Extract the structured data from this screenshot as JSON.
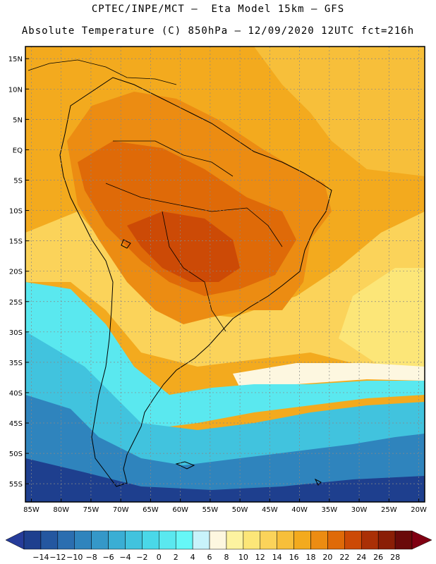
{
  "header": {
    "line1": "CPTEC/INPE/MCT —  Eta Model 15km — GFS",
    "line2": "Absolute Temperature (C) 850hPa — 12/09/2020 12UTC fct=216h"
  },
  "axes": {
    "lat_labels": [
      "15N",
      "10N",
      "5N",
      "EQ",
      "5S",
      "10S",
      "15S",
      "20S",
      "25S",
      "30S",
      "35S",
      "40S",
      "45S",
      "50S",
      "55S"
    ],
    "lat_values": [
      15,
      10,
      5,
      0,
      -5,
      -10,
      -15,
      -20,
      -25,
      -30,
      -35,
      -40,
      -45,
      -50,
      -55
    ],
    "lon_labels": [
      "85W",
      "80W",
      "75W",
      "70W",
      "65W",
      "60W",
      "55W",
      "50W",
      "45W",
      "40W",
      "35W",
      "30W",
      "25W",
      "20W"
    ],
    "lon_values": [
      -85,
      -80,
      -75,
      -70,
      -65,
      -60,
      -55,
      -50,
      -45,
      -40,
      -35,
      -30,
      -25,
      -20
    ],
    "lat_range": [
      -58,
      17
    ],
    "lon_range": [
      -86,
      -19
    ]
  },
  "colorbar": {
    "labels": [
      "-14",
      "-12",
      "-10",
      "-8",
      "-6",
      "-4",
      "-2",
      "0",
      "2",
      "4",
      "6",
      "8",
      "10",
      "12",
      "14",
      "16",
      "18",
      "20",
      "22",
      "24",
      "26",
      "28"
    ],
    "colors": [
      "#1e3f8e",
      "#2457a0",
      "#2b6eb0",
      "#2f84bd",
      "#3598c8",
      "#3aaed4",
      "#41c3de",
      "#4ad8e8",
      "#5ae8ef",
      "#66f7f7",
      "#c8f3fb",
      "#fdf7e0",
      "#fdf3a0",
      "#fce678",
      "#fbd35a",
      "#f7bf3a",
      "#f3aa1e",
      "#ec8c12",
      "#df6a08",
      "#cc4a06",
      "#aa3006",
      "#8a1e06",
      "#6a0a0a"
    ],
    "left_arrow_color": "#263c9a",
    "right_arrow_color": "#800012"
  },
  "map_colors": {
    "warm_ocean_north": "#f3aa1e",
    "warm_ocean_mid": "#f7bf3a",
    "subtropical": "#fbd35a",
    "pale_yellow": "#fce678",
    "cream": "#fdf7e0",
    "cyan": "#5ae8ef",
    "light_blue": "#41c3de",
    "mid_blue": "#2f84bd",
    "deep_blue": "#1e3f8e",
    "amazon_orange": "#ec8c12",
    "interior_hot": "#df6a08",
    "core_hot": "#cc4a06"
  }
}
